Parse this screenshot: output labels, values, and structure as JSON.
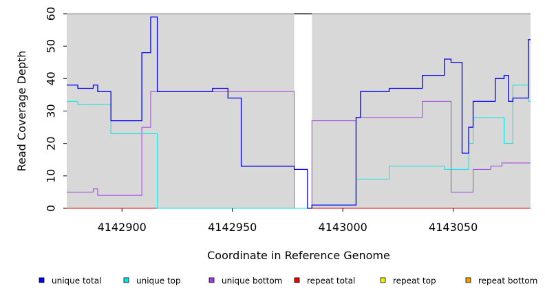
{
  "chart_data": {
    "type": "line",
    "xlabel": "Coordinate in Reference Genome",
    "ylabel": "Read Coverage Depth",
    "xlim": [
      4142875,
      4143085
    ],
    "ylim": [
      0,
      60
    ],
    "xticks": [
      4142900,
      4142950,
      4143000,
      4143050
    ],
    "xtick_labels": [
      "4142900",
      "4142950",
      "4143000",
      "4143050"
    ],
    "yticks": [
      0,
      10,
      20,
      30,
      40,
      50,
      60
    ],
    "ytick_labels": [
      "0",
      "10",
      "20",
      "30",
      "40",
      "50",
      "60"
    ],
    "gap": [
      4142978,
      4142986
    ],
    "legend_position": "bottom",
    "series": [
      {
        "name": "unique total",
        "color": "#0000ee",
        "x": [
          4142875,
          4142880,
          4142887,
          4142889,
          4142892,
          4142895,
          4142906,
          4142909,
          4142913,
          4142916,
          4142937,
          4142941,
          4142948,
          4142954,
          4142978,
          4142984,
          4142986,
          4143006,
          4143008,
          4143021,
          4143036,
          4143046,
          4143049,
          4143054,
          4143057,
          4143059,
          4143069,
          4143073,
          4143075,
          4143077,
          4143084
        ],
        "y": [
          38,
          37,
          38,
          36,
          36,
          27,
          27,
          48,
          59,
          36,
          36,
          37,
          34,
          13,
          12,
          0,
          1,
          28,
          36,
          37,
          41,
          46,
          45,
          17,
          25,
          33,
          40,
          41,
          33,
          34,
          52
        ]
      },
      {
        "name": "unique top",
        "color": "#00e5e5",
        "x": [
          4142875,
          4142880,
          4142895,
          4142916,
          4142978,
          4142986,
          4143006,
          4143021,
          4143046,
          4143054,
          4143057,
          4143059,
          4143069,
          4143073,
          4143077,
          4143084
        ],
        "y": [
          33,
          32,
          23,
          0,
          0,
          1,
          9,
          13,
          12,
          12,
          20,
          28,
          28,
          20,
          38,
          33
        ]
      },
      {
        "name": "unique bottom",
        "color": "#a040e0",
        "x": [
          4142875,
          4142887,
          4142889,
          4142892,
          4142909,
          4142913,
          4142916,
          4142978,
          4142986,
          4143006,
          4143021,
          4143036,
          4143049,
          4143059,
          4143067,
          4143072,
          4143084
        ],
        "y": [
          5,
          6,
          4,
          4,
          25,
          36,
          36,
          0,
          27,
          28,
          28,
          33,
          5,
          12,
          13,
          14,
          14
        ]
      },
      {
        "name": "repeat total",
        "color": "#ee0000",
        "x": [
          4142875,
          4143085
        ],
        "y": [
          0,
          0
        ]
      },
      {
        "name": "repeat top",
        "color": "#eeee00",
        "x": [
          4142875,
          4143085
        ],
        "y": [
          0,
          0
        ]
      },
      {
        "name": "repeat bottom",
        "color": "#f0a000",
        "x": [
          4142875,
          4143085
        ],
        "y": [
          0,
          0
        ]
      }
    ]
  }
}
